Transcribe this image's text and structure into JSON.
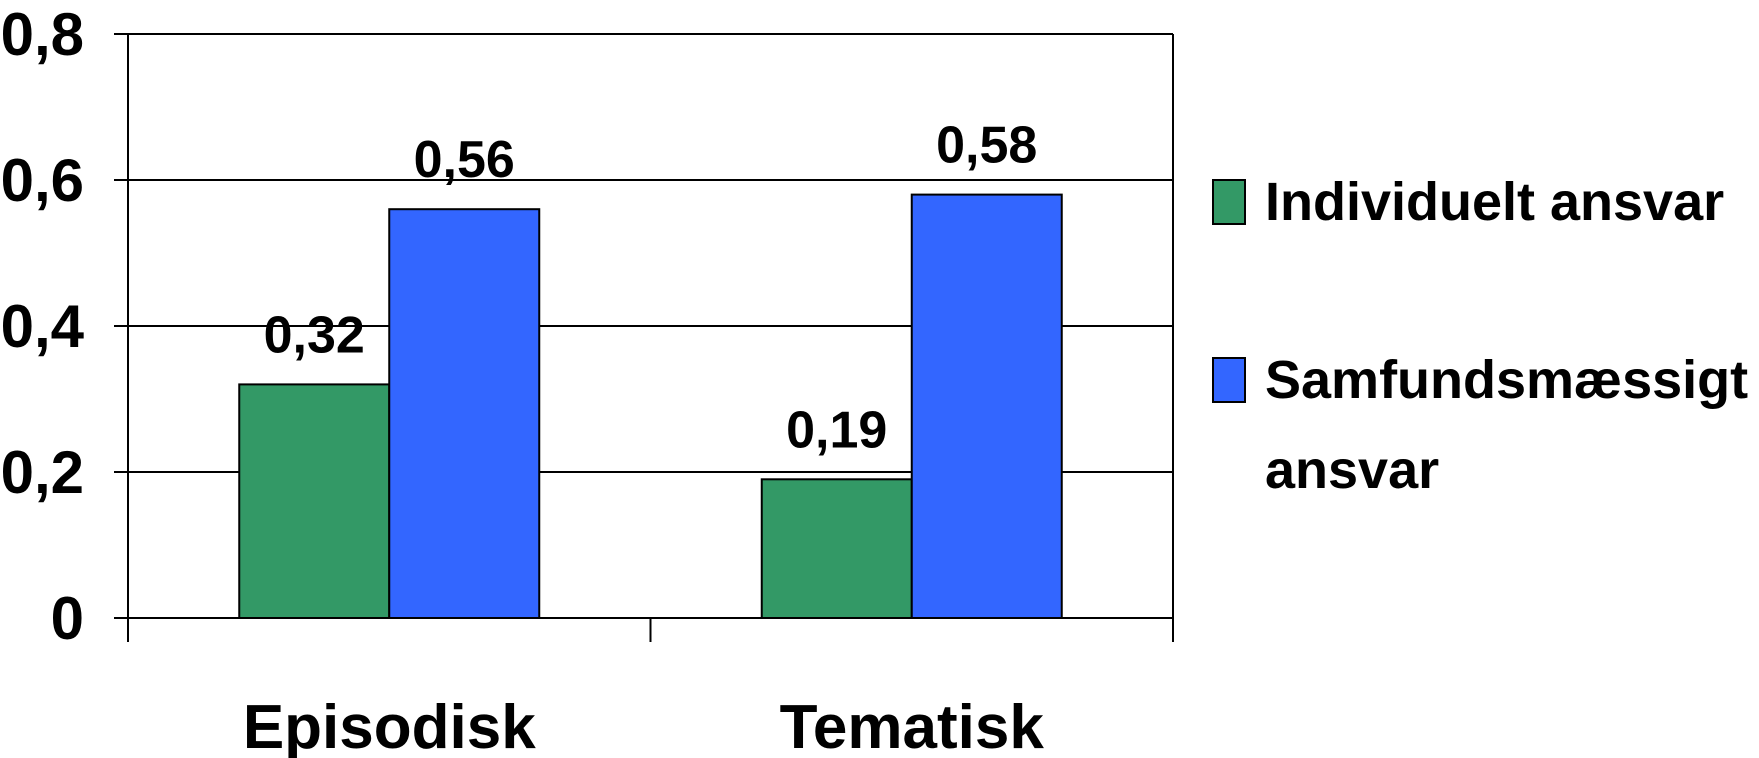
{
  "chart_data": {
    "type": "bar",
    "categories": [
      "Episodisk",
      "Tematisk"
    ],
    "series": [
      {
        "name": "Individuelt ansvar",
        "values": [
          0.32,
          0.19
        ],
        "labels": [
          "0,32",
          "0,19"
        ],
        "color": "#339966"
      },
      {
        "name": "Samfundsmæssigt ansvar",
        "legend_lines": [
          "Samfundsmæssigt",
          "ansvar"
        ],
        "values": [
          0.56,
          0.58
        ],
        "labels": [
          "0,56",
          "0,58"
        ],
        "color": "#3366FF"
      }
    ],
    "ylim": [
      0,
      0.8
    ],
    "yticks": [
      0,
      0.2,
      0.4,
      0.6,
      0.8
    ],
    "ytick_labels": [
      "0",
      "0,2",
      "0,4",
      "0,6",
      "0,8"
    ],
    "title": "",
    "xlabel": "",
    "ylabel": "",
    "grid": true,
    "legend_position": "right"
  }
}
